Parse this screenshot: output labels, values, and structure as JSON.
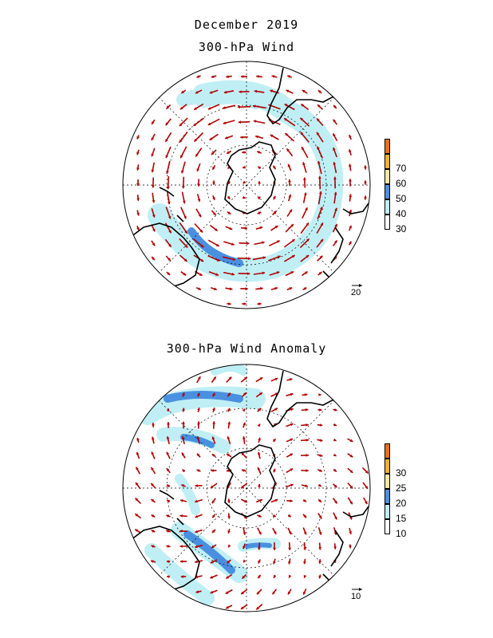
{
  "titles": {
    "period": "December 2019",
    "map1": "300-hPa Wind",
    "map2": "300-hPa Wind Anomaly"
  },
  "maps": [
    {
      "id": "wind",
      "legend": {
        "labels": [
          "30",
          "40",
          "50",
          "60",
          "70"
        ],
        "colors": [
          "#ffffff",
          "#bfeff5",
          "#4a90e0",
          "#f7e8a0",
          "#f5b030",
          "#f07010"
        ]
      },
      "reference_vector_label": "20"
    },
    {
      "id": "anomaly",
      "legend": {
        "labels": [
          "10",
          "15",
          "20",
          "25",
          "30"
        ],
        "colors": [
          "#ffffff",
          "#bfeff5",
          "#4a90e0",
          "#f7e8a0",
          "#f5b030",
          "#f07010"
        ]
      },
      "reference_vector_label": "10"
    }
  ],
  "style": {
    "arrow_color": "#b00000",
    "coast_color": "#000000"
  }
}
